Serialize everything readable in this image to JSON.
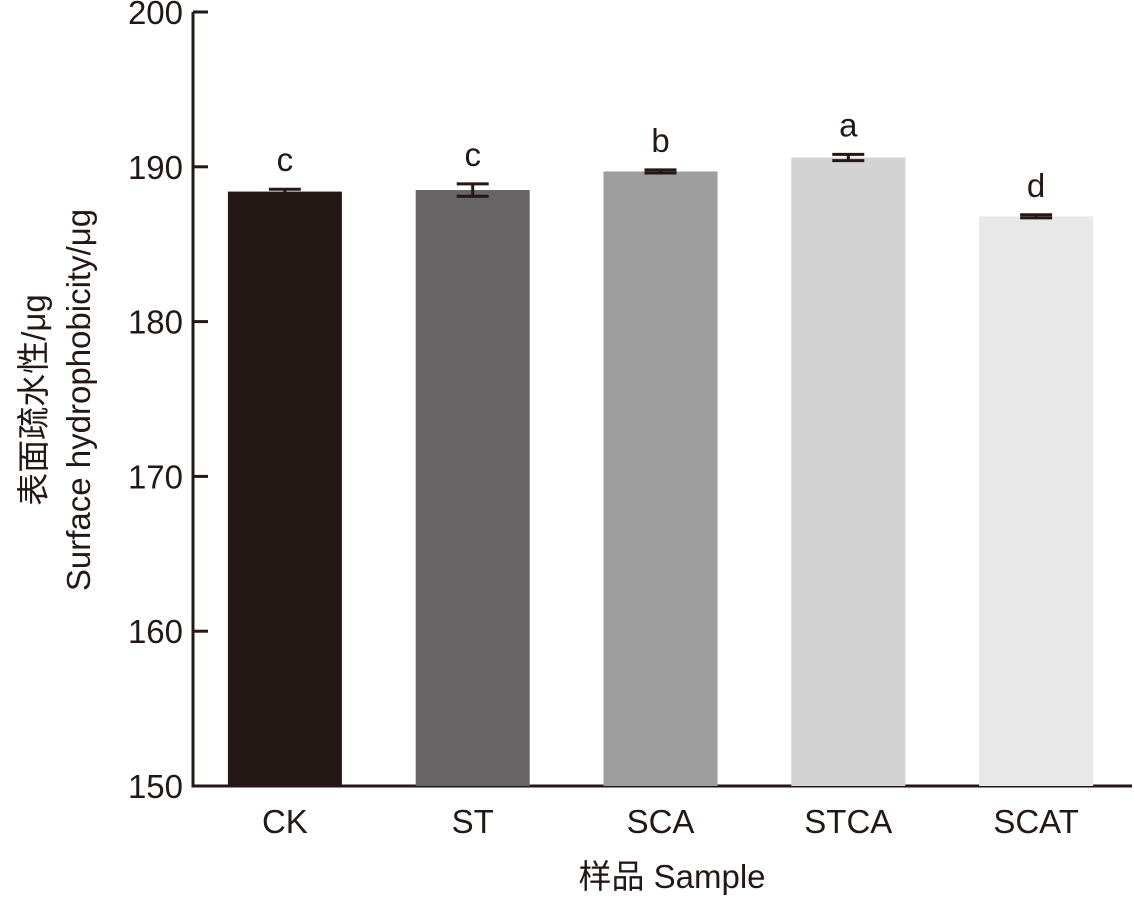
{
  "chart_data": {
    "type": "bar",
    "title": "",
    "xlabel": "样品 Sample",
    "ylabel_cn": "表面疏水性/μg",
    "ylabel_en": "Surface hydrophobicity/μg",
    "ylim": [
      150,
      200
    ],
    "yticks": [
      150,
      160,
      170,
      180,
      190,
      200
    ],
    "grid": false,
    "categories": [
      "CK",
      "ST",
      "SCA",
      "STCA",
      "SCAT"
    ],
    "values": [
      188.4,
      188.5,
      189.7,
      190.6,
      186.8
    ],
    "errors": [
      0.15,
      0.4,
      0.1,
      0.2,
      0.1
    ],
    "significance": [
      "c",
      "c",
      "b",
      "a",
      "d"
    ],
    "colors": [
      "#231815",
      "#666464",
      "#9e9e9e",
      "#d3d3d3",
      "#e8e8e8"
    ]
  }
}
